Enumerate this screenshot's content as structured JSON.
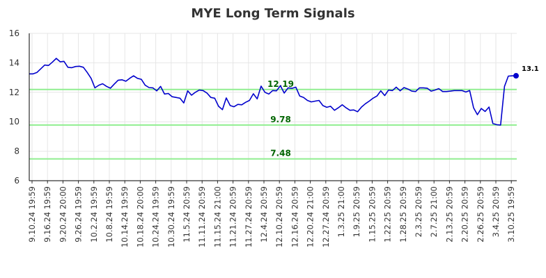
{
  "chart_data": {
    "type": "line",
    "title": "MYE Long Term Signals",
    "xlabel": "",
    "ylabel": "",
    "ylim": [
      6,
      16
    ],
    "y_ticks": [
      6,
      8,
      10,
      12,
      14,
      16
    ],
    "grid": true,
    "x_tick_labels": [
      "9.10.24 19:59",
      "9.16.24 19:59",
      "9.20.24 20:00",
      "9.26.24 19:59",
      "10.2.24 19:59",
      "10.8.24 19:59",
      "10.14.24 19:59",
      "10.18.24 20:00",
      "10.24.24 19:59",
      "10.30.24 19:59",
      "11.5.24 20:59",
      "11.11.24 20:59",
      "11.15.24 21:00",
      "11.21.24 20:59",
      "11.27.24 20:59",
      "12.4.24 20:59",
      "12.10.24 20:59",
      "12.16.24 20:59",
      "12.20.24 21:00",
      "12.27.24 20:59",
      "1.3.25 21:00",
      "1.9.25 20:59",
      "1.15.25 20:59",
      "1.22.25 20:59",
      "1.28.25 20:59",
      "2.3.25 20:59",
      "2.7.25 21:00",
      "2.13.25 20:59",
      "2.20.25 20:59",
      "2.26.25 20:59",
      "3.4.25 20:59",
      "3.10.25 19:59"
    ],
    "series": [
      {
        "values": [
          13.25,
          13.25,
          13.35,
          13.6,
          13.85,
          13.82,
          14.05,
          14.3,
          14.07,
          14.1,
          13.7,
          13.67,
          13.75,
          13.77,
          13.7,
          13.35,
          12.95,
          12.3,
          12.48,
          12.58,
          12.4,
          12.28,
          12.55,
          12.82,
          12.85,
          12.75,
          12.95,
          13.12,
          12.95,
          12.88,
          12.48,
          12.32,
          12.3,
          12.1,
          12.4,
          11.88,
          11.92,
          11.7,
          11.65,
          11.6,
          11.28,
          12.1,
          11.8,
          12.0,
          12.15,
          12.12,
          11.95,
          11.65,
          11.6,
          11.05,
          10.82,
          11.62,
          11.1,
          11.02,
          11.18,
          11.15,
          11.32,
          11.45,
          11.9,
          11.55,
          12.42,
          12.0,
          11.88,
          12.12,
          12.1,
          12.45,
          11.95,
          12.3,
          12.27,
          12.35,
          11.75,
          11.65,
          11.45,
          11.35,
          11.4,
          11.45,
          11.1,
          10.98,
          11.05,
          10.78,
          10.95,
          11.15,
          10.95,
          10.78,
          10.8,
          10.68,
          11.0,
          11.22,
          11.4,
          11.6,
          11.75,
          12.1,
          11.78,
          12.15,
          12.12,
          12.35,
          12.1,
          12.32,
          12.22,
          12.08,
          12.05,
          12.3,
          12.3,
          12.28,
          12.08,
          12.15,
          12.25,
          12.05,
          12.05,
          12.08,
          12.12,
          12.12,
          12.12,
          12.02,
          12.12,
          10.95,
          10.48,
          10.9,
          10.7,
          11.0,
          9.88,
          9.8,
          9.78,
          12.4,
          13.1,
          13.12,
          13.12
        ]
      }
    ],
    "signal_lines": [
      12.19,
      9.78,
      7.48
    ],
    "signal_labels": [
      "12.19",
      "9.78",
      "7.48"
    ],
    "last_value_label": "13.1",
    "colors": {
      "line": "#0000cc",
      "signal": "#90ee90",
      "signal_text": "#006400",
      "grid": "#e6e6e6",
      "axis": "#000000"
    }
  }
}
